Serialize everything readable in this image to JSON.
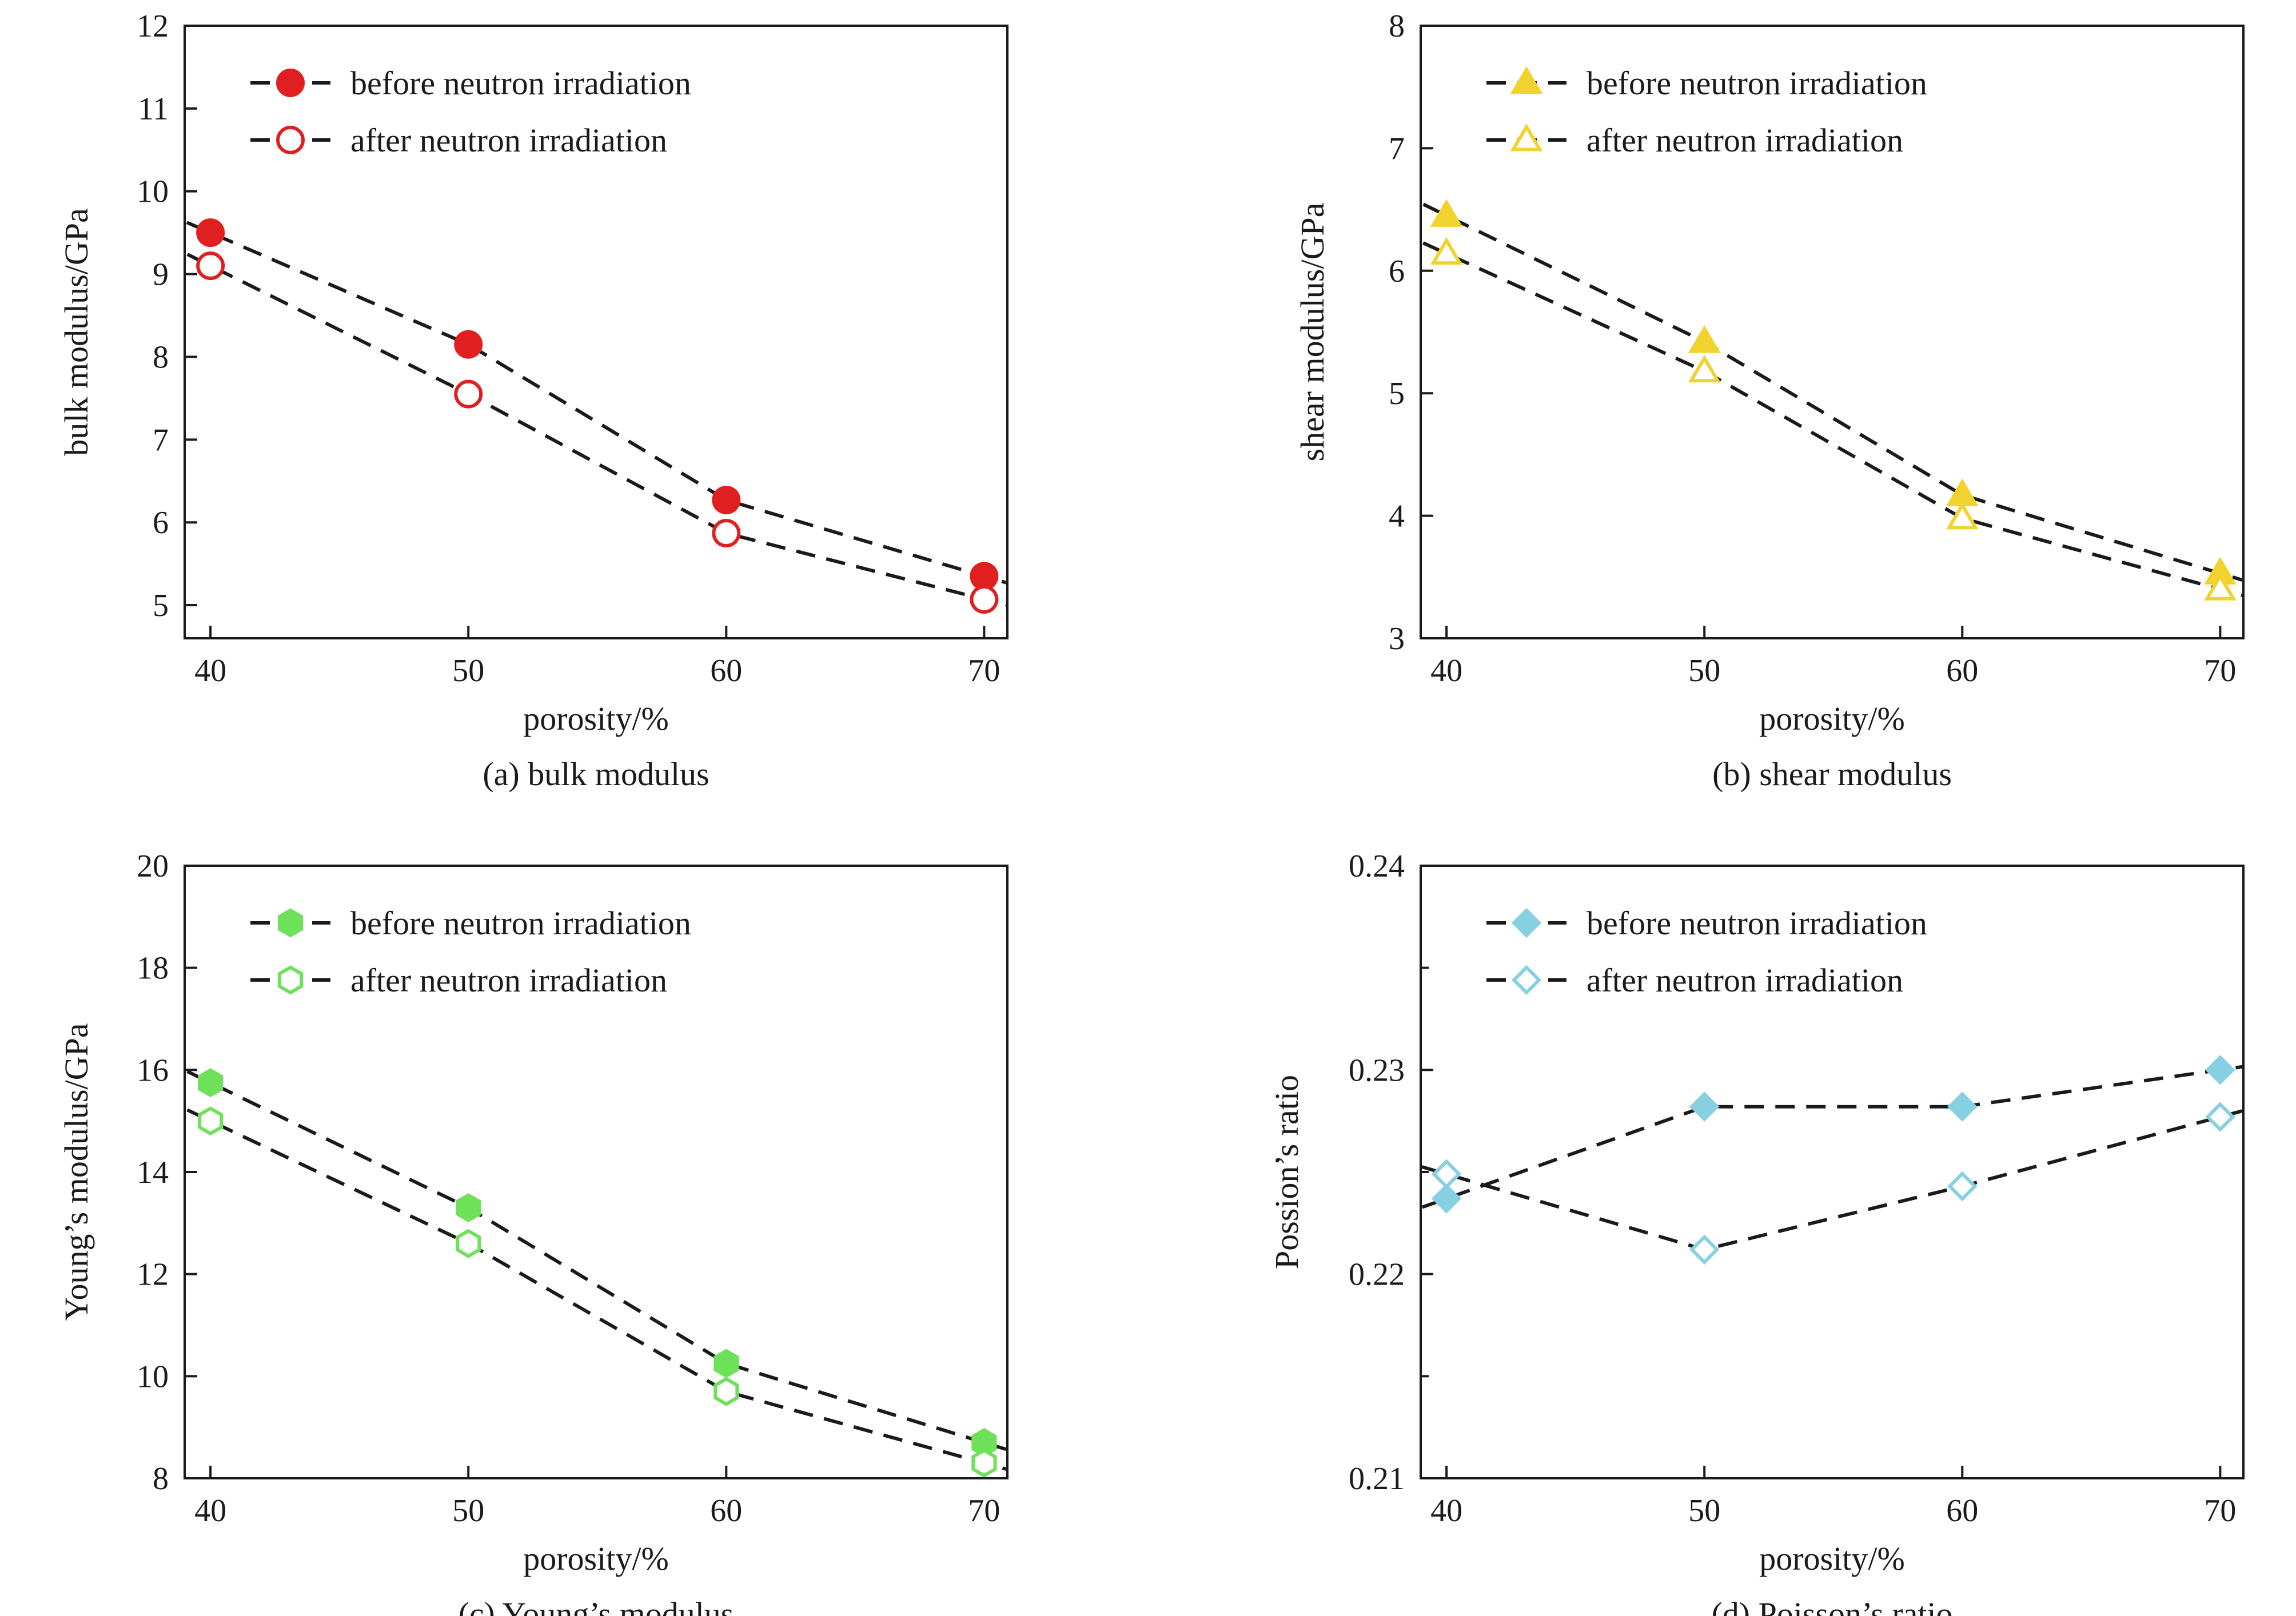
{
  "chart_data": [
    {
      "id": "a",
      "type": "line",
      "caption": "(a) bulk modulus",
      "xlabel": "porosity/%",
      "ylabel": "bulk modulus/GPa",
      "x": [
        40,
        50,
        60,
        70
      ],
      "xlim": [
        39,
        70.9
      ],
      "ylim": [
        4.6,
        12
      ],
      "xticks": [
        40,
        50,
        60,
        70
      ],
      "yticks": [
        5,
        6,
        7,
        8,
        9,
        10,
        11,
        12
      ],
      "yminor": [],
      "marker": "circle",
      "color": "#e02020",
      "legend_position": "top-left",
      "series": [
        {
          "name": "before neutron irradiation",
          "filled": true,
          "values": [
            9.5,
            8.15,
            6.27,
            5.35
          ]
        },
        {
          "name": "after neutron irradiation",
          "filled": false,
          "values": [
            9.1,
            7.55,
            5.87,
            5.07
          ]
        }
      ]
    },
    {
      "id": "b",
      "type": "line",
      "caption": "(b) shear modulus",
      "xlabel": "porosity/%",
      "ylabel": "shear modulus/GPa",
      "x": [
        40,
        50,
        60,
        70
      ],
      "xlim": [
        39,
        70.9
      ],
      "ylim": [
        3,
        8
      ],
      "xticks": [
        40,
        50,
        60,
        70
      ],
      "yticks": [
        3,
        4,
        5,
        6,
        7,
        8
      ],
      "yminor": [],
      "marker": "triangle",
      "color": "#f2d22e",
      "legend_position": "top-left",
      "series": [
        {
          "name": "before neutron irradiation",
          "filled": true,
          "values": [
            6.45,
            5.42,
            4.17,
            3.53
          ]
        },
        {
          "name": "after neutron irradiation",
          "filled": false,
          "values": [
            6.14,
            5.18,
            3.98,
            3.4
          ]
        }
      ]
    },
    {
      "id": "c",
      "type": "line",
      "caption": "(c) Young’s modulus",
      "xlabel": "porosity/%",
      "ylabel": "Young’s modulus/GPa",
      "x": [
        40,
        50,
        60,
        70
      ],
      "xlim": [
        39,
        70.9
      ],
      "ylim": [
        8,
        20
      ],
      "xticks": [
        40,
        50,
        60,
        70
      ],
      "yticks": [
        8,
        10,
        12,
        14,
        16,
        18,
        20
      ],
      "yminor": [],
      "marker": "hexagon",
      "color": "#6ee05a",
      "legend_position": "top-left",
      "series": [
        {
          "name": "before neutron irradiation",
          "filled": true,
          "values": [
            15.75,
            13.3,
            10.25,
            8.7
          ]
        },
        {
          "name": "after neutron irradiation",
          "filled": false,
          "values": [
            15.0,
            12.6,
            9.7,
            8.3
          ]
        }
      ]
    },
    {
      "id": "d",
      "type": "line",
      "caption": "(d) Poisson’s ratio",
      "xlabel": "porosity/%",
      "ylabel": "Possion’s ratio",
      "x": [
        40,
        50,
        60,
        70
      ],
      "xlim": [
        39,
        70.9
      ],
      "ylim": [
        0.21,
        0.24
      ],
      "xticks": [
        40,
        50,
        60,
        70
      ],
      "yticks": [
        0.21,
        0.22,
        0.23,
        0.24
      ],
      "yticklabels": [
        "0.21",
        "0.22",
        "0.23",
        "0.24"
      ],
      "yminor": [
        0.215,
        0.225,
        0.235
      ],
      "marker": "diamond",
      "color": "#86d0e2",
      "legend_position": "top-left",
      "series": [
        {
          "name": "before neutron irradiation",
          "filled": true,
          "values": [
            0.2237,
            0.2282,
            0.2282,
            0.23
          ]
        },
        {
          "name": "after neutron irradiation",
          "filled": false,
          "values": [
            0.2249,
            0.2212,
            0.2243,
            0.2277
          ]
        }
      ]
    }
  ]
}
